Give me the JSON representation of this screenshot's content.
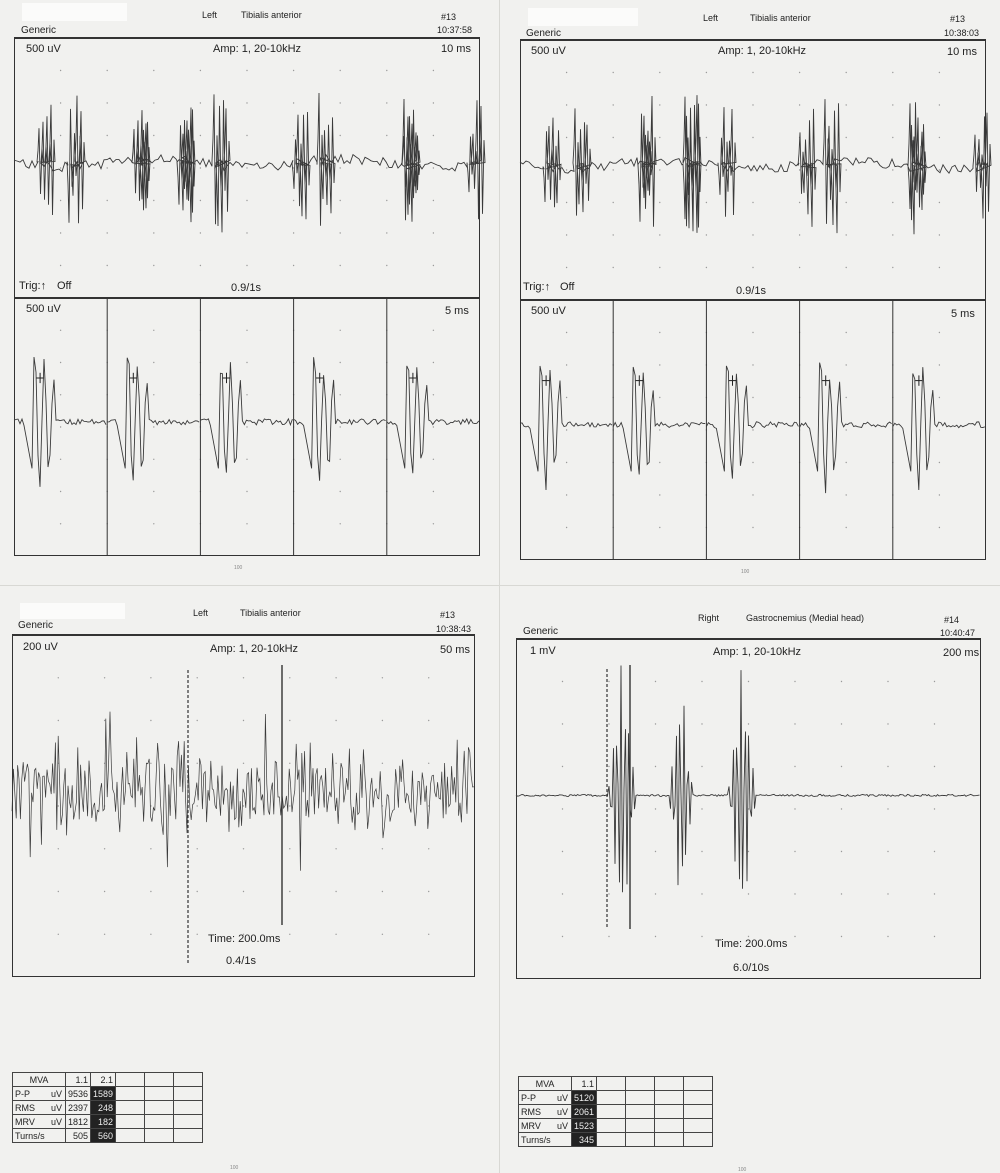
{
  "panels": [
    {
      "header": {
        "label": "Generic",
        "side": "Left",
        "muscle": "Tibialis anterior",
        "id": "#13",
        "time": "10:37:58"
      },
      "top": {
        "scale": "500 uV",
        "amp": "Amp: 1, 20-10kHz",
        "sweep": "10 ms",
        "trig": "Trig:↑",
        "trig_state": "Off",
        "rate": "0.9/1s"
      },
      "bottom": {
        "scale": "500 uV",
        "sweep": "5 ms"
      },
      "page_no": "100"
    },
    {
      "header": {
        "label": "Generic",
        "side": "Left",
        "muscle": "Tibialis anterior",
        "id": "#13",
        "time": "10:38:03"
      },
      "top": {
        "scale": "500 uV",
        "amp": "Amp: 1, 20-10kHz",
        "sweep": "10 ms",
        "trig": "Trig:↑",
        "trig_state": "Off",
        "rate": "0.9/1s"
      },
      "bottom": {
        "scale": "500 uV",
        "sweep": "5 ms"
      },
      "page_no": "100"
    },
    {
      "header": {
        "label": "Generic",
        "side": "Left",
        "muscle": "Tibialis anterior",
        "id": "#13",
        "time": "10:38:43"
      },
      "main": {
        "scale": "200 uV",
        "amp": "Amp: 1, 20-10kHz",
        "sweep": "50 ms",
        "time_text": "Time: 200.0ms",
        "rate": "0.4/1s"
      },
      "mva": {
        "header": [
          "MVA",
          "1.1",
          "2.1"
        ],
        "rows": [
          {
            "label": "P-P",
            "unit": "uV",
            "values": [
              "9536",
              "1589"
            ]
          },
          {
            "label": "RMS",
            "unit": "uV",
            "values": [
              "2397",
              "248"
            ]
          },
          {
            "label": "MRV",
            "unit": "uV",
            "values": [
              "1812",
              "182"
            ]
          },
          {
            "label": "Turns/s",
            "unit": "",
            "values": [
              "505",
              "560"
            ]
          }
        ]
      },
      "page_no": "100"
    },
    {
      "header": {
        "label": "Generic",
        "side": "Right",
        "muscle": "Gastrocnemius (Medial head)",
        "id": "#14",
        "time": "10:40:47"
      },
      "main": {
        "scale": "1 mV",
        "amp": "Amp: 1, 20-10kHz",
        "sweep": "200 ms",
        "time_text": "Time: 200.0ms",
        "rate": "6.0/10s"
      },
      "mva": {
        "header": [
          "MVA",
          "1.1"
        ],
        "rows": [
          {
            "label": "P-P",
            "unit": "uV",
            "values": [
              "5120"
            ]
          },
          {
            "label": "RMS",
            "unit": "uV",
            "values": [
              "2061"
            ]
          },
          {
            "label": "MRV",
            "unit": "uV",
            "values": [
              "1523"
            ]
          },
          {
            "label": "Turns/s",
            "unit": "",
            "values": [
              "345"
            ]
          }
        ]
      },
      "page_no": "100"
    }
  ],
  "chart_data": [
    {
      "type": "line",
      "title": "Left Tibialis anterior #13 10:37:58",
      "y_scale": "500 uV",
      "x_scale": "10 ms",
      "view": "raw interference pattern, 10 divisions",
      "grid": "dotted"
    },
    {
      "type": "line",
      "title": "Left Tibialis anterior #13 10:37:58",
      "y_scale": "500 uV",
      "x_scale": "5 ms",
      "view": "5 triggered MUP epochs",
      "grid": "dotted"
    },
    {
      "type": "line",
      "title": "Left Tibialis anterior #13 10:38:03",
      "y_scale": "500 uV",
      "x_scale": "10 ms",
      "view": "raw interference pattern, 10 divisions",
      "grid": "dotted"
    },
    {
      "type": "line",
      "title": "Left Tibialis anterior #13 10:38:03",
      "y_scale": "500 uV",
      "x_scale": "5 ms",
      "view": "5 triggered MUP epochs",
      "grid": "dotted"
    },
    {
      "type": "line",
      "title": "Left Tibialis anterior #13 10:38:43",
      "y_scale": "200 uV",
      "x_scale": "50 ms",
      "view": "dense interference pattern",
      "grid": "dotted"
    },
    {
      "type": "line",
      "title": "Right Gastrocnemius (Medial head) #14 10:40:47",
      "y_scale": "1 mV",
      "x_scale": "200 ms",
      "view": "three discharge bursts on flat baseline",
      "grid": "dotted"
    }
  ]
}
